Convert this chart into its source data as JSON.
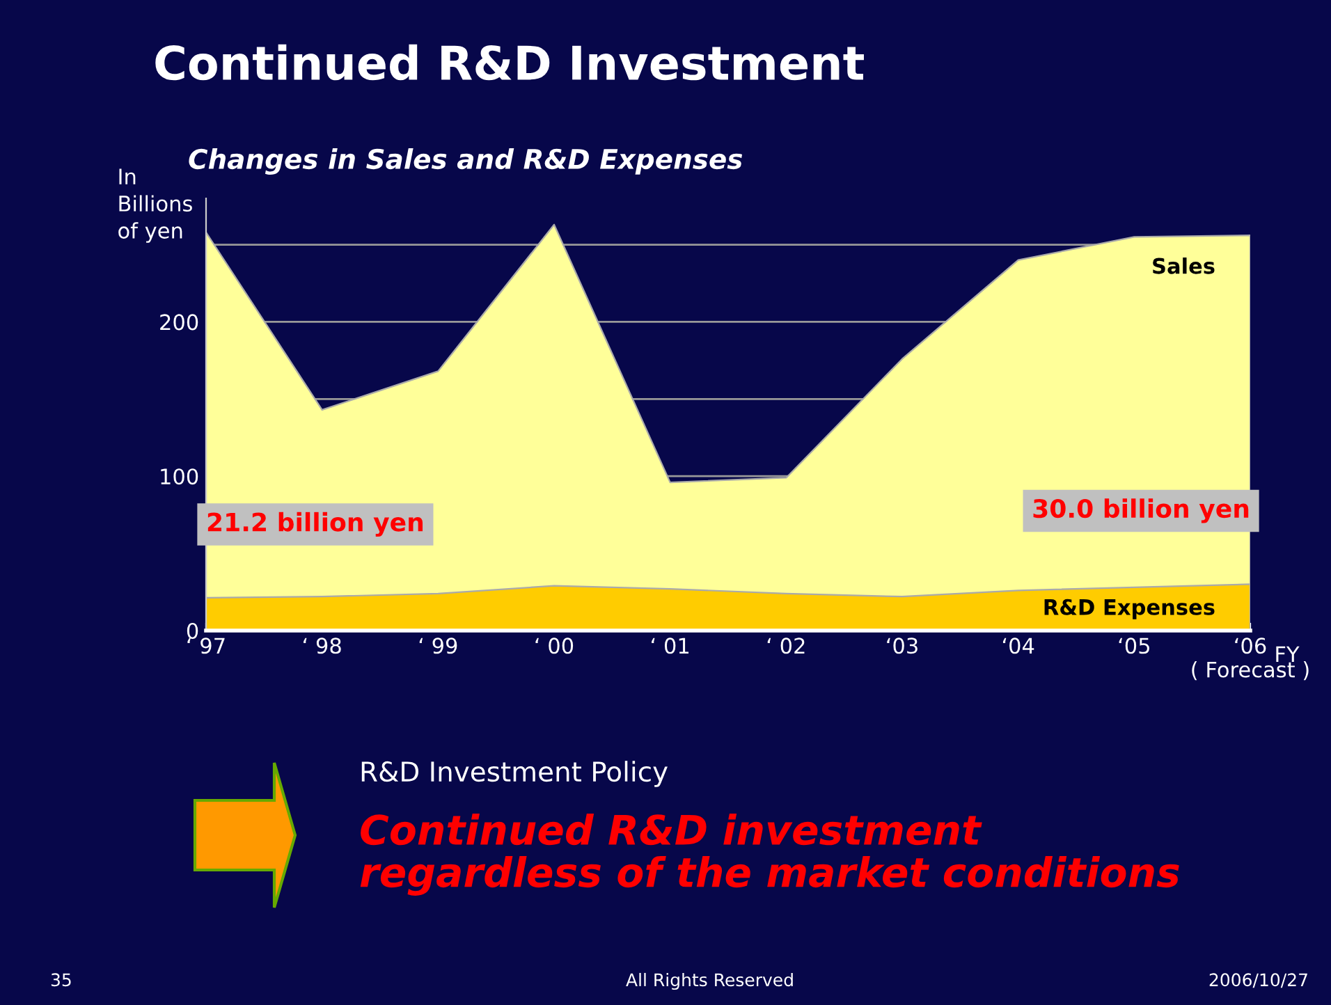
{
  "chart_data": {
    "type": "area",
    "title": "Continued R&D Investment",
    "subtitle": "Changes in Sales and R&D Expenses",
    "ylabel": "In\nBillions\nof yen",
    "xlabel": "FY",
    "categories": [
      "‘ 97",
      "‘ 98",
      "‘ 99",
      "‘ 00",
      "‘ 01",
      "‘ 02",
      "‘03",
      "‘04",
      "‘05",
      "‘06\n( Forecast )"
    ],
    "series": [
      {
        "name": "Sales",
        "color": "#ffff99",
        "values": [
          258,
          143,
          168,
          263,
          96,
          99,
          176,
          240,
          255,
          256
        ]
      },
      {
        "name": "R&D Expenses",
        "color": "#ffcc00",
        "values": [
          21.2,
          22,
          24,
          29,
          27,
          24,
          22,
          26,
          28,
          30.0
        ]
      }
    ],
    "ylim": [
      0,
      280
    ],
    "yticks": [
      0,
      100,
      {
        "value": 150,
        "label": null
      },
      200,
      {
        "value": 250,
        "label": null
      }
    ],
    "grid": "y",
    "legend": false,
    "annotations": [
      {
        "text": "21.2 billion yen",
        "x": "‘ 97",
        "y": 21.2
      },
      {
        "text": "30.0 billion yen",
        "x": "‘06\n( Forecast )",
        "y": 30.0
      },
      "R&D Investment Policy",
      "Continued R&D investment\nregardless of the market conditions",
      "35",
      "All Rights Reserved",
      "2006/10/27"
    ]
  }
}
